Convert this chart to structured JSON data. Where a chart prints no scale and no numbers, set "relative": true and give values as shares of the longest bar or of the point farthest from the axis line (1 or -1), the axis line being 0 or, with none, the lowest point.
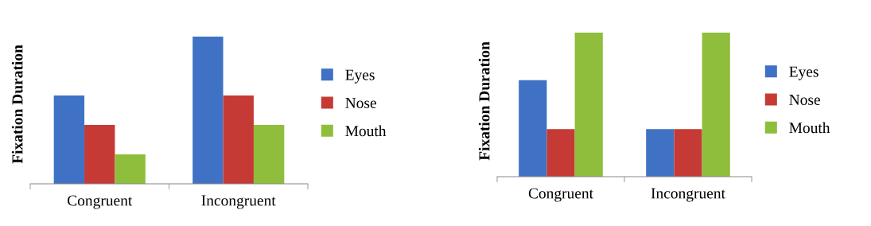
{
  "chart_data": [
    {
      "type": "bar",
      "relative": true,
      "ylabel": "Fixation Duration",
      "categories": [
        "Congruent",
        "Incongruent"
      ],
      "legend": "right",
      "series": [
        {
          "name": "Eyes",
          "color": "#3f72c4",
          "values": [
            0.6,
            1
          ]
        },
        {
          "name": "Nose",
          "color": "#c53a35",
          "values": [
            0.4,
            0.6
          ]
        },
        {
          "name": "Mouth",
          "color": "#8fbe3c",
          "values": [
            0.2,
            0.4
          ]
        }
      ]
    },
    {
      "type": "bar",
      "relative": true,
      "ylabel": "Fixation Duration",
      "categories": [
        "Congruent",
        "Incongruent"
      ],
      "legend": "right",
      "series": [
        {
          "name": "Eyes",
          "color": "#3f72c4",
          "values": [
            0.67,
            0.33
          ]
        },
        {
          "name": "Nose",
          "color": "#c53a35",
          "values": [
            0.33,
            0.33
          ]
        },
        {
          "name": "Mouth",
          "color": "#8fbe3c",
          "values": [
            1,
            1
          ]
        }
      ]
    }
  ]
}
